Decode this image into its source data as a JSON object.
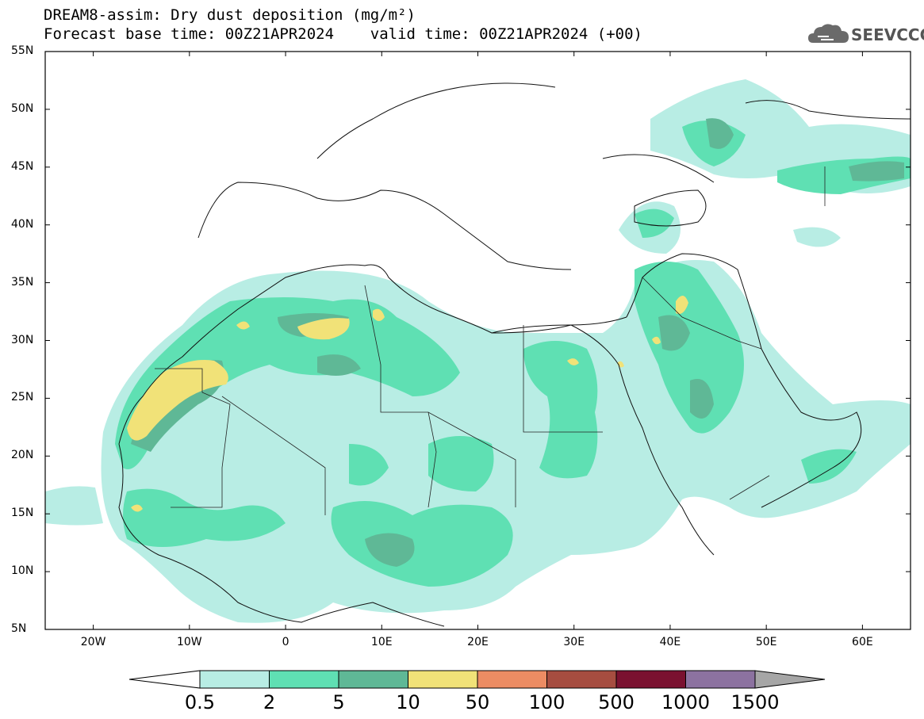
{
  "header": {
    "line1": "DREAM8-assim: Dry dust deposition (mg/m²)",
    "line2": "Forecast base time: 00Z21APR2024    valid time: 00Z21APR2024 (+00)"
  },
  "logo": {
    "text": "SEEVCCC",
    "icon": "cloud-icon"
  },
  "axes": {
    "lat_labels": [
      "55N",
      "50N",
      "45N",
      "40N",
      "35N",
      "30N",
      "25N",
      "20N",
      "15N",
      "10N",
      "5N"
    ],
    "lon_labels": [
      "20W",
      "10W",
      "0",
      "10E",
      "20E",
      "30E",
      "40E",
      "50E",
      "60E"
    ],
    "lon_range": [
      -25,
      65
    ],
    "lat_range": [
      5,
      55
    ]
  },
  "colorbar": {
    "levels": [
      "0.5",
      "2",
      "5",
      "10",
      "50",
      "100",
      "500",
      "1000",
      "1500"
    ],
    "colors": [
      "#b8ede4",
      "#5fe0b3",
      "#5fb896",
      "#f1e278",
      "#ec8c63",
      "#a64d40",
      "#7a1130",
      "#8c72a0"
    ],
    "under_color": "#ffffff",
    "over_color": "#a6a6a6"
  }
}
